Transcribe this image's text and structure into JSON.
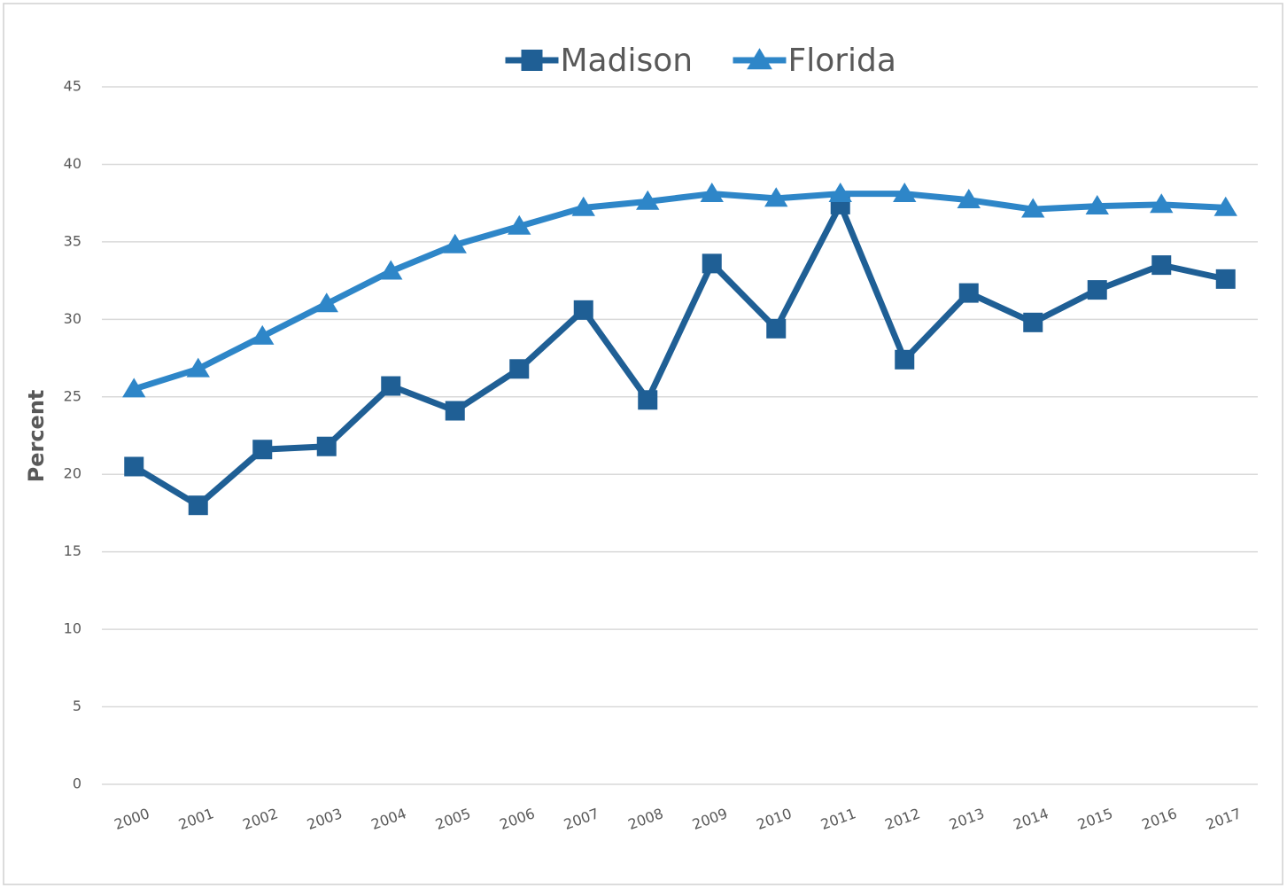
{
  "chart_data": {
    "type": "line",
    "y_label": "Percent",
    "categories": [
      "2000",
      "2001",
      "2002",
      "2003",
      "2004",
      "2005",
      "2006",
      "2007",
      "2008",
      "2009",
      "2010",
      "2011",
      "2012",
      "2013",
      "2014",
      "2015",
      "2016",
      "2017"
    ],
    "series": [
      {
        "name": "Madison",
        "color": "#1f5f95",
        "marker": "square",
        "values": [
          20.5,
          18.0,
          21.6,
          21.8,
          25.7,
          24.1,
          26.8,
          30.6,
          24.8,
          33.6,
          29.4,
          37.4,
          27.4,
          31.7,
          29.8,
          31.9,
          33.5,
          32.6
        ]
      },
      {
        "name": "Florida",
        "color": "#2e86c8",
        "marker": "triangle",
        "values": [
          25.5,
          26.8,
          28.9,
          31.0,
          33.1,
          34.8,
          36.0,
          37.2,
          37.6,
          38.1,
          37.8,
          38.1,
          38.1,
          37.7,
          37.1,
          37.3,
          37.4,
          37.2
        ]
      }
    ],
    "ylim": [
      0,
      45
    ],
    "yticks": [
      0,
      5,
      10,
      15,
      20,
      25,
      30,
      35,
      40,
      45
    ],
    "grid": true,
    "legend": "top"
  }
}
